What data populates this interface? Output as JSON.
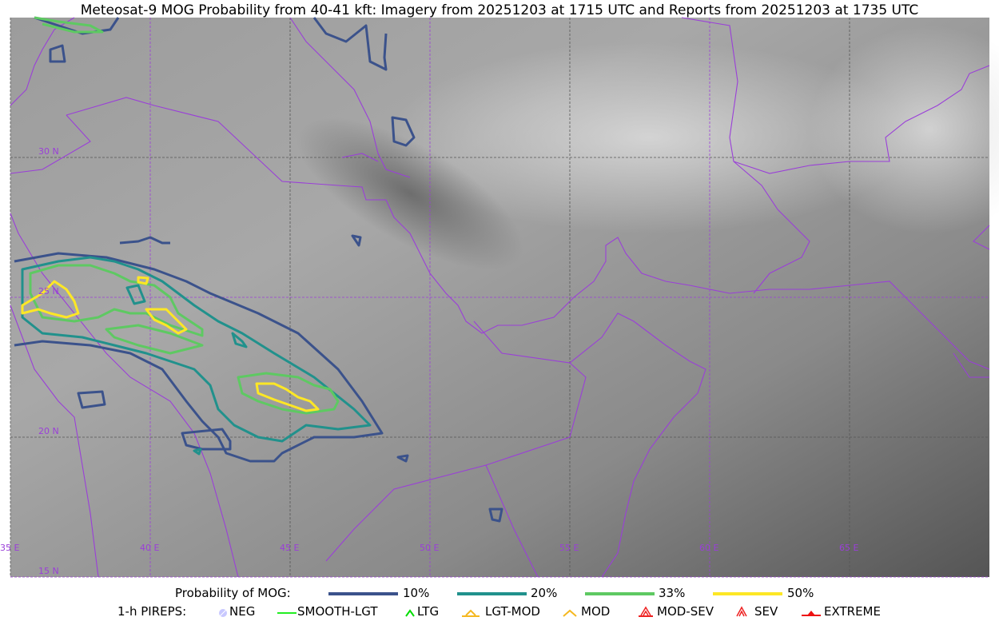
{
  "title": "Meteosat-9 MOG Probability from 40-41 kft: Imagery from 20251203 at 1715 UTC and Reports from 20251203 at 1735 UTC",
  "map": {
    "longitude_labels": [
      "35 E",
      "40 E",
      "45 E",
      "50 E",
      "55 E",
      "60 E",
      "65 E"
    ],
    "latitude_labels": [
      "30 N",
      "25 N",
      "20 N",
      "15 N"
    ],
    "lon_range": [
      35,
      70
    ],
    "lat_range": [
      15,
      35
    ],
    "grid_color": "#9a3fd8",
    "border_color": "#9a3fd8"
  },
  "legend": {
    "probability_title": "Probability of MOG:",
    "probability_levels": [
      {
        "label": "10%",
        "color": "#3b528b"
      },
      {
        "label": "20%",
        "color": "#21918c"
      },
      {
        "label": "33%",
        "color": "#5ec962"
      },
      {
        "label": "50%",
        "color": "#fde725"
      }
    ],
    "pireps_title": "1-h PIREPS:",
    "pireps": [
      {
        "label": "NEG",
        "color": "#c8c8ff",
        "icon": "neg-circle-icon"
      },
      {
        "label": "SMOOTH-LGT",
        "color": "#22ee22",
        "icon": "line-icon"
      },
      {
        "label": "LTG",
        "color": "#00dd00",
        "icon": "caret-icon"
      },
      {
        "label": "LGT-MOD",
        "color": "#f5b820",
        "icon": "caret-bar-icon"
      },
      {
        "label": "MOD",
        "color": "#f5b820",
        "icon": "caret-icon"
      },
      {
        "label": "MOD-SEV",
        "color": "#ee2222",
        "icon": "double-caret-bar-icon"
      },
      {
        "label": "SEV",
        "color": "#ee2222",
        "icon": "double-caret-icon"
      },
      {
        "label": "EXTREME",
        "color": "#ee1111",
        "icon": "filled-triangle-icon"
      }
    ]
  }
}
